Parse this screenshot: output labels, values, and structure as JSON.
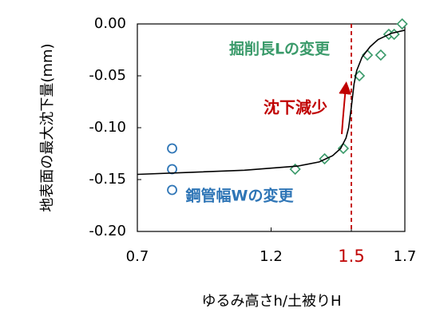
{
  "chart_data": {
    "type": "scatter",
    "xlabel": "ゆるみ高さh/土被りH",
    "ylabel": "地表面の最大沈下量(mm)",
    "xlim": [
      0.7,
      1.7
    ],
    "xticks": [
      0.7,
      1.2,
      1.5,
      1.7
    ],
    "ylim": [
      -0.2,
      0
    ],
    "yticks": [
      {
        "value": -0.2,
        "label": "-0.20"
      },
      {
        "value": -0.15,
        "label": "-0.15"
      },
      {
        "value": -0.1,
        "label": "-0.10"
      },
      {
        "value": -0.05,
        "label": "-0.05"
      },
      {
        "value": 0,
        "label": "0.00"
      }
    ],
    "vline": {
      "x": 1.5,
      "color": "#c00000"
    },
    "annotation": {
      "text": "沈下減少",
      "color": "#c00000"
    },
    "series": [
      {
        "name": "鋼管幅Wの変更",
        "marker": "circle",
        "color": "#2e75b6",
        "x": [
          0.83,
          0.83,
          0.83
        ],
        "values": [
          -0.12,
          -0.14,
          -0.16
        ]
      },
      {
        "name": "掘削長Lの変更",
        "marker": "diamond",
        "color": "#3a9a6a",
        "x": [
          1.29,
          1.4,
          1.47,
          1.53,
          1.56,
          1.61,
          1.64,
          1.66,
          1.69
        ],
        "values": [
          -0.14,
          -0.13,
          -0.12,
          -0.05,
          -0.03,
          -0.03,
          -0.01,
          -0.01,
          0
        ]
      },
      {
        "marker": "line",
        "color": "#000000",
        "x": [
          0.7,
          0.9,
          1.1,
          1.3,
          1.38,
          1.43,
          1.46,
          1.48,
          1.49,
          1.5,
          1.51,
          1.52,
          1.54,
          1.57,
          1.6,
          1.65,
          1.7
        ],
        "values": [
          -0.145,
          -0.143,
          -0.141,
          -0.137,
          -0.133,
          -0.127,
          -0.12,
          -0.11,
          -0.1,
          -0.08,
          -0.058,
          -0.045,
          -0.032,
          -0.022,
          -0.015,
          -0.009,
          -0.006
        ]
      }
    ]
  }
}
